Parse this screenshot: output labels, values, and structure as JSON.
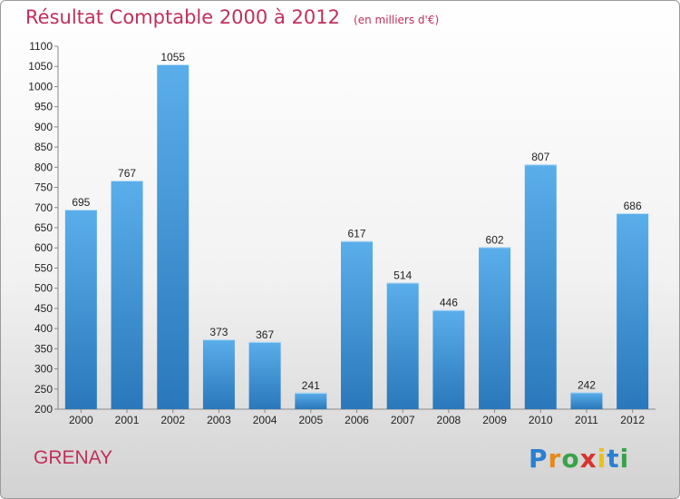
{
  "header": {
    "title": "Résultat Comptable 2000 à 2012",
    "unit": "(en milliers d'€)"
  },
  "footer": {
    "commune": "GRENAY",
    "logo_letters": [
      "P",
      "r",
      "o",
      "x",
      "i",
      "t",
      "i"
    ],
    "logo_colors": [
      "#2b7fd0",
      "#e88a1a",
      "#3aa24a",
      "#d8342c",
      "#e8c21a",
      "#2b7fd0",
      "#3aa24a"
    ]
  },
  "chart_data": {
    "type": "bar",
    "title": "Résultat Comptable 2000 à 2012",
    "subtitle": "(en milliers d'€)",
    "categories": [
      "2000",
      "2001",
      "2002",
      "2003",
      "2004",
      "2005",
      "2006",
      "2007",
      "2008",
      "2009",
      "2010",
      "2011",
      "2012"
    ],
    "values": [
      695,
      767,
      1055,
      373,
      367,
      241,
      617,
      514,
      446,
      602,
      807,
      242,
      686
    ],
    "ylim": [
      200,
      1100
    ],
    "ytick_step": 50,
    "grid": false,
    "bar_color_light": "#5aaeea",
    "bar_color_dark": "#2a78bb"
  }
}
